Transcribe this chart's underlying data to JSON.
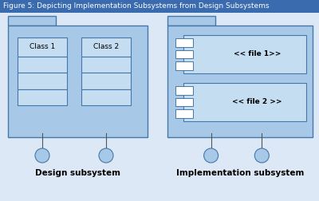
{
  "title": "Figure 5: Depicting Implementation Subsystems from Design Subsystems",
  "title_bg": "#3a6baf",
  "title_color": "white",
  "title_fontsize": 6.5,
  "bg_color": "#dce8f5",
  "folder_fill": "#a8c8e8",
  "folder_stroke": "#4477aa",
  "class_fill": "#c5ddf0",
  "class_stroke": "#4477aa",
  "file_fill": "#c5ddf0",
  "file_stroke": "#4477aa",
  "icon_fill": "white",
  "circle_fill": "#a8c8e8",
  "circle_stroke": "#4477aa",
  "label_design": "Design subsystem",
  "label_impl": "Implementation subsystem",
  "label_fontsize": 7.5,
  "class1_label": "Class 1",
  "class2_label": "Class 2",
  "file1_label": "<< file 1>>",
  "file2_label": "<< file 2 >>",
  "lollipop_line_color": "#555555"
}
